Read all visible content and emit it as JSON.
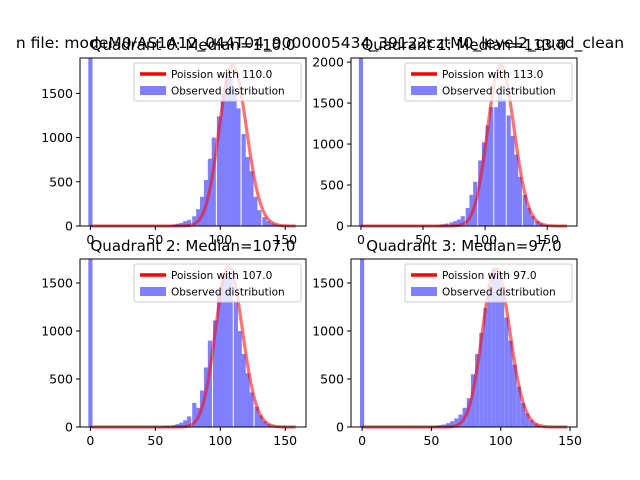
{
  "figure": {
    "title": "n file: modeM0/AS1A12_044T04_9000005434_39122cztM0_level2_quad_clean"
  },
  "chart_data": [
    {
      "type": "bar",
      "title": "Quadrant 0: Median=110.0",
      "median": 110.0,
      "xlim": [
        -8,
        166
      ],
      "ylim": [
        0,
        1900
      ],
      "xticks": [
        0,
        50,
        100,
        150
      ],
      "yticks": [
        0,
        500,
        1000,
        1500
      ],
      "bin_width": 3.2,
      "legend": [
        "Poission with 110.0",
        "Observed distribution"
      ],
      "hist": {
        "x": [
          0,
          60,
          64,
          67,
          70,
          73,
          76,
          80,
          83,
          86,
          89,
          92,
          95,
          99,
          102,
          105,
          108,
          111,
          114,
          118,
          121,
          124,
          127,
          130,
          134,
          137,
          140,
          143,
          146,
          150,
          153
        ],
        "y": [
          1900,
          8,
          15,
          25,
          35,
          55,
          70,
          110,
          190,
          330,
          520,
          760,
          1000,
          1240,
          1500,
          1690,
          1660,
          1560,
          1330,
          1040,
          780,
          620,
          330,
          180,
          100,
          55,
          30,
          18,
          10,
          6,
          3
        ]
      },
      "poisson_curve": {
        "x_range": [
          0,
          158
        ],
        "lambda": 110,
        "peak": 1820
      }
    },
    {
      "type": "bar",
      "title": "Quadrant 1: Median=113.0",
      "median": 113.0,
      "xlim": [
        -8,
        174
      ],
      "ylim": [
        0,
        2050
      ],
      "xticks": [
        0,
        50,
        100,
        150
      ],
      "yticks": [
        0,
        500,
        1000,
        1500,
        2000
      ],
      "bin_width": 3.3,
      "legend": [
        "Poission with 113.0",
        "Observed distribution"
      ],
      "hist": {
        "x": [
          0,
          63,
          66,
          69,
          73,
          76,
          79,
          82,
          86,
          89,
          92,
          96,
          99,
          102,
          105,
          109,
          112,
          115,
          119,
          122,
          125,
          128,
          132,
          135,
          138,
          142,
          145,
          148,
          151,
          155
        ],
        "y": [
          2050,
          10,
          20,
          30,
          45,
          60,
          80,
          120,
          220,
          380,
          540,
          800,
          1020,
          1230,
          1450,
          1450,
          1620,
          1550,
          1350,
          1100,
          870,
          600,
          380,
          220,
          120,
          60,
          30,
          15,
          8,
          4
        ]
      },
      "poisson_curve": {
        "x_range": [
          0,
          166
        ],
        "lambda": 113,
        "peak": 1960
      }
    },
    {
      "type": "bar",
      "title": "Quadrant 2: Median=107.0",
      "median": 107.0,
      "xlim": [
        -8,
        166
      ],
      "ylim": [
        0,
        1750
      ],
      "xticks": [
        0,
        50,
        100,
        150
      ],
      "yticks": [
        0,
        500,
        1000,
        1500
      ],
      "bin_width": 3.2,
      "legend": [
        "Poission with 107.0",
        "Observed distribution"
      ],
      "hist": {
        "x": [
          0,
          57,
          60,
          64,
          67,
          70,
          73,
          76,
          80,
          83,
          86,
          89,
          92,
          96,
          99,
          102,
          105,
          108,
          112,
          115,
          118,
          121,
          124,
          128,
          131,
          134,
          137,
          140,
          144,
          147
        ],
        "y": [
          1750,
          8,
          12,
          18,
          30,
          45,
          70,
          110,
          250,
          200,
          380,
          620,
          900,
          1110,
          1420,
          1560,
          1600,
          1560,
          1310,
          1000,
          760,
          560,
          360,
          210,
          120,
          60,
          30,
          14,
          8,
          4
        ]
      },
      "poisson_curve": {
        "x_range": [
          0,
          158
        ],
        "lambda": 107,
        "peak": 1670
      }
    },
    {
      "type": "bar",
      "title": "Quadrant 3: Median=97.0",
      "median": 97.0,
      "xlim": [
        -8,
        155
      ],
      "ylim": [
        0,
        1750
      ],
      "xticks": [
        0,
        50,
        100,
        150
      ],
      "yticks": [
        0,
        500,
        1000,
        1500
      ],
      "bin_width": 3.0,
      "legend": [
        "Poission with 97.0",
        "Observed distribution"
      ],
      "hist": {
        "x": [
          0,
          50,
          53,
          56,
          59,
          62,
          65,
          68,
          71,
          74,
          77,
          80,
          83,
          86,
          89,
          92,
          95,
          98,
          101,
          104,
          107,
          110,
          113,
          116,
          119,
          122,
          125,
          128,
          131,
          134
        ],
        "y": [
          1750,
          8,
          12,
          18,
          25,
          40,
          60,
          90,
          130,
          200,
          300,
          550,
          760,
          980,
          1240,
          1480,
          1650,
          1560,
          1380,
          1140,
          900,
          650,
          420,
          250,
          140,
          70,
          35,
          16,
          8,
          4
        ]
      },
      "poisson_curve": {
        "x_range": [
          0,
          148
        ],
        "lambda": 97,
        "peak": 1650
      }
    }
  ]
}
